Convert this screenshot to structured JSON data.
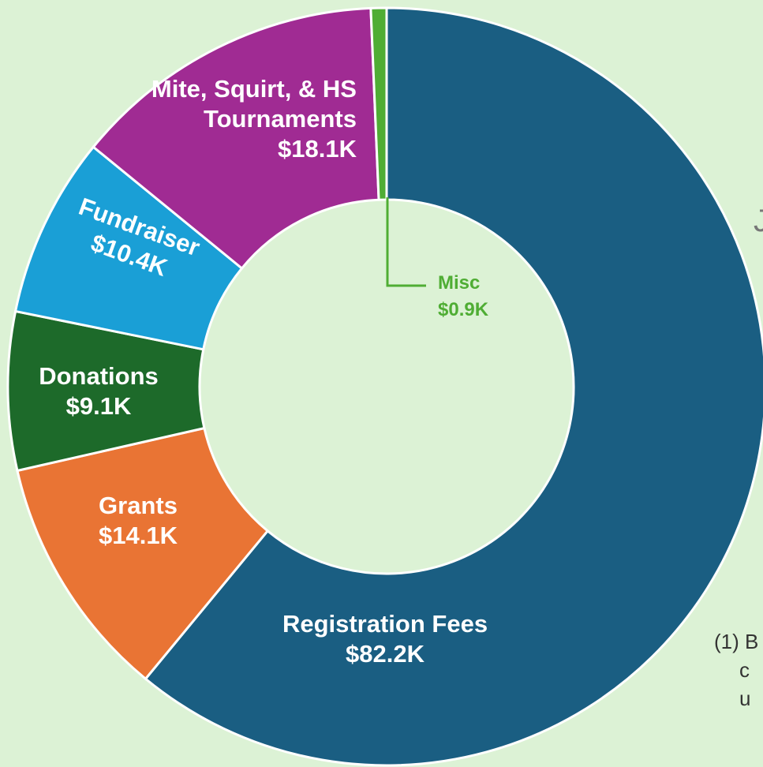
{
  "chart_data": {
    "type": "donut",
    "categories": [
      "Registration Fees",
      "Grants",
      "Donations",
      "Fundraiser",
      "Mite, Squirt, & HS Tournaments",
      "Misc"
    ],
    "values": [
      82.2,
      14.1,
      9.1,
      10.4,
      18.1,
      0.9
    ],
    "value_labels": [
      "$82.2K",
      "$14.1K",
      "$9.1K",
      "$10.4K",
      "$18.1K",
      "$0.9K"
    ],
    "colors": [
      "#1a5e82",
      "#e97434",
      "#1d6a2a",
      "#1a9fd6",
      "#a02b93",
      "#4fad34"
    ],
    "annotations": [
      "J",
      "(1) B",
      "c",
      "u"
    ]
  }
}
